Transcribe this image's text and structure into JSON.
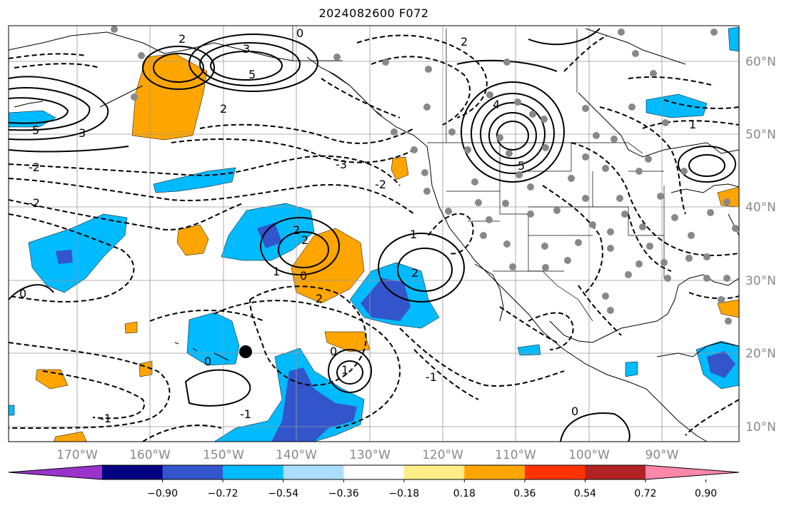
{
  "title": "2024082600 F072",
  "lon_labels": [
    "170°W",
    "160°W",
    "150°W",
    "140°W",
    "130°W",
    "120°W",
    "110°W",
    "100°W",
    "90°W"
  ],
  "lat_labels": [
    "60°N",
    "50°N",
    "40°N",
    "30°N",
    "20°N",
    "10°N"
  ],
  "colorbar": {
    "tick_labels": [
      "−0.90",
      "−0.72",
      "−0.54",
      "−0.36",
      "−0.18",
      "0.18",
      "0.36",
      "0.54",
      "0.72",
      "0.90"
    ],
    "colors": [
      "#9933cc",
      "#000080",
      "#3355cc",
      "#00bbff",
      "#aaddff",
      "#ffffff",
      "#ffee88",
      "#ffa500",
      "#ff3300",
      "#b22222",
      "#ff88aa"
    ]
  },
  "contour_labels": [
    "0",
    "2",
    "3",
    "5",
    "2",
    "3",
    "-2",
    "4",
    "5",
    "-3",
    "-2",
    "2",
    "2",
    "-2",
    "1",
    "2",
    "0",
    "2",
    "1",
    "0",
    "-1",
    "-1",
    "0",
    "1",
    "5",
    "0",
    "0",
    "-1",
    "1",
    "2"
  ]
}
